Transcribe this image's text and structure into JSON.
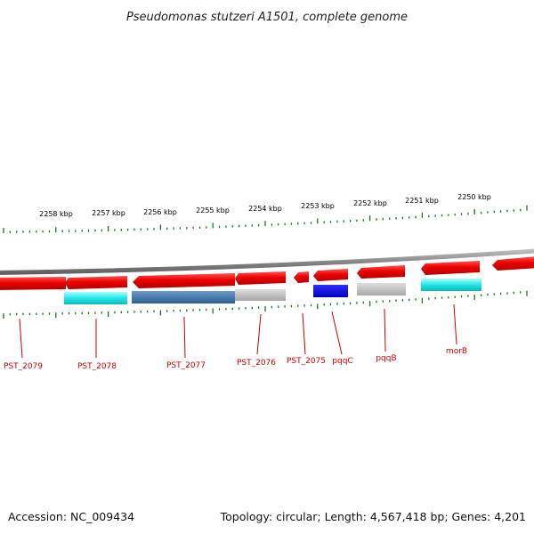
{
  "title": "Pseudomonas stutzeri A1501, complete genome",
  "footer": {
    "accession": "Accession: NC_009434",
    "topology": "Topology: circular; Length: 4,567,418 bp; Genes: 4,201"
  },
  "scale_labels": [
    "2258 kbp",
    "2257 kbp",
    "2256 kbp",
    "2255 kbp",
    "2254 kbp",
    "2253 kbp",
    "2252 kbp",
    "2251 kbp",
    "2250 kbp"
  ],
  "gene_labels": [
    "PST_2079",
    "PST_2078",
    "PST_2077",
    "PST_2076",
    "PST_2075",
    "pqqC",
    "pqqB",
    "morB"
  ],
  "colors": {
    "gene_arrow": "#ee0000",
    "backbone": "#808080",
    "ticks": "#1a7a1a",
    "label": "#cc0000",
    "cyan_feature": "#22e6e6",
    "steel_feature": "#3d73a8",
    "blue_feature": "#0000e0",
    "grey_feature": "#b8b8b8"
  }
}
